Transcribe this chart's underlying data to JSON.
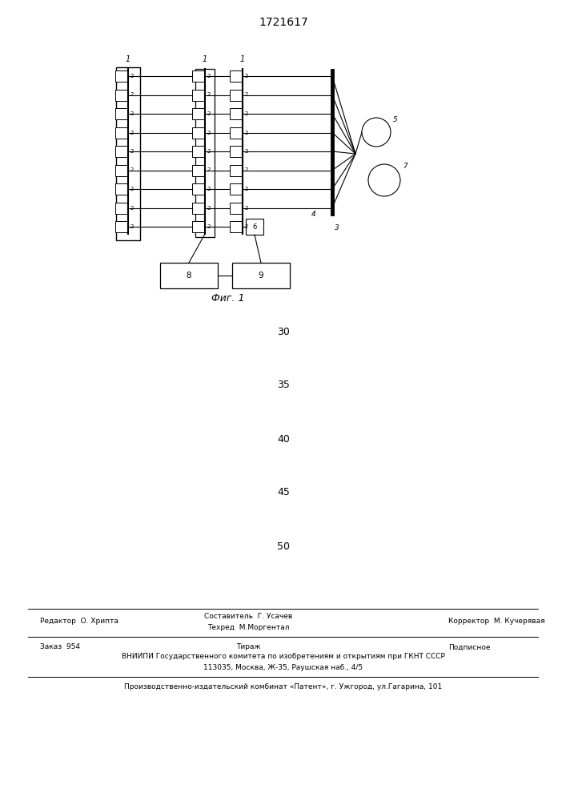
{
  "title": "1721617",
  "fig_caption": "Фиг. 1",
  "bg_color": "#ffffff",
  "n_rows": 9,
  "numbers_in_image": [
    30,
    35,
    40,
    45,
    50
  ],
  "footer": {
    "editor": "Редактор  О. Хрипта",
    "composer": "Составитель  Г. Усачев",
    "techred": "Техред  М.Моргентал",
    "corrector": "Корректор  М. Кучерявая",
    "order": "Заказ  954",
    "tirazh": "Тираж",
    "podpisnoe": "Подписное",
    "vniipи": "ВНИИПИ Государственного комитета по изобретениям и открытиям при ГКНТ СССР",
    "address": "113035, Москва, Ж-35, Раушская наб., 4/5",
    "plant": "Производственно-издательский комбинат «Патент», г. Ужгород, ул.Гагарина, 101"
  }
}
